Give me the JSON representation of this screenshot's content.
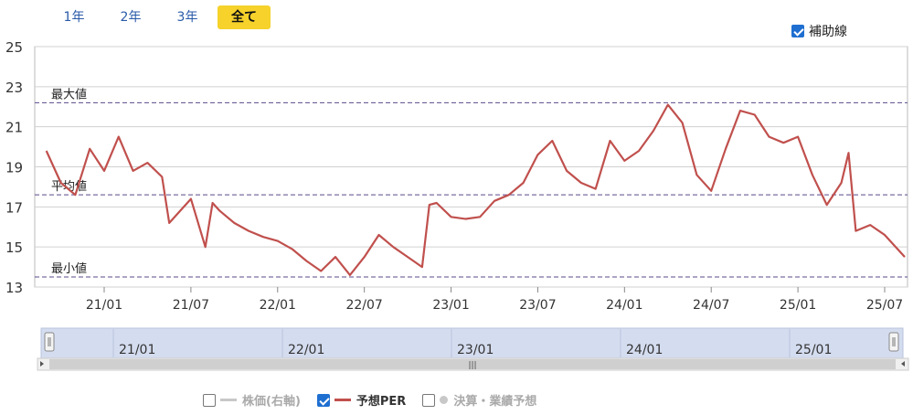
{
  "range_tabs": [
    {
      "label": "1年",
      "active": false
    },
    {
      "label": "2年",
      "active": false
    },
    {
      "label": "3年",
      "active": false
    },
    {
      "label": "全て",
      "active": true
    }
  ],
  "aux_lines": {
    "label": "補助線",
    "checked": true
  },
  "legend": [
    {
      "label": "株価(右軸)",
      "checked": false,
      "color": "#c8c8c8",
      "marker": "line"
    },
    {
      "label": "予想PER",
      "checked": true,
      "color": "#c0504d",
      "marker": "line"
    },
    {
      "label": "決算・業績予想",
      "checked": false,
      "color": "#c8c8c8",
      "marker": "dot"
    }
  ],
  "navigator": {
    "labels": [
      "21/01",
      "22/01",
      "23/01",
      "24/01",
      "25/01"
    ],
    "handle_grip": "|||"
  },
  "chart_data": {
    "type": "line",
    "y_ticks": [
      25,
      23,
      21,
      19,
      17,
      15,
      13
    ],
    "ylim": [
      13,
      25
    ],
    "x_ticks": [
      "21/01",
      "21/07",
      "22/01",
      "22/07",
      "23/01",
      "23/07",
      "24/01",
      "24/07",
      "25/01",
      "25/07"
    ],
    "reference_lines": [
      {
        "label": "最大値",
        "value": 22.2
      },
      {
        "label": "平均値",
        "value": 17.6
      },
      {
        "label": "最小値",
        "value": 13.5
      }
    ],
    "series": [
      {
        "name": "予想PER",
        "color": "#c0504d",
        "x": [
          "20/09",
          "20/10",
          "20/11",
          "20/12",
          "21/01",
          "21/02",
          "21/03",
          "21/04",
          "21/05",
          "21/05",
          "21/06",
          "21/07",
          "21/08",
          "21/08",
          "21/09",
          "21/10",
          "21/11",
          "21/12",
          "22/01",
          "22/02",
          "22/03",
          "22/04",
          "22/05",
          "22/06",
          "22/07",
          "22/08",
          "22/09",
          "22/10",
          "22/11",
          "22/11",
          "22/12",
          "23/01",
          "23/02",
          "23/03",
          "23/04",
          "23/05",
          "23/06",
          "23/07",
          "23/08",
          "23/09",
          "23/10",
          "23/11",
          "23/12",
          "24/01",
          "24/02",
          "24/03",
          "24/04",
          "24/05",
          "24/06",
          "24/07",
          "24/08",
          "24/09",
          "24/10",
          "24/11",
          "24/12",
          "25/01",
          "25/02",
          "25/03",
          "25/04",
          "25/04",
          "25/05",
          "25/06",
          "25/07",
          "25/08"
        ],
        "values": [
          19.8,
          18.2,
          17.6,
          19.9,
          18.8,
          20.5,
          18.8,
          19.2,
          18.5,
          16.2,
          16.6,
          17.4,
          15.0,
          17.2,
          16.8,
          16.2,
          15.8,
          15.5,
          15.3,
          14.9,
          14.3,
          13.8,
          14.5,
          13.6,
          14.5,
          15.6,
          15.0,
          14.5,
          14.0,
          17.1,
          17.2,
          16.5,
          16.4,
          16.5,
          17.3,
          17.6,
          18.2,
          19.6,
          20.3,
          18.8,
          18.2,
          17.9,
          20.3,
          19.3,
          19.8,
          20.8,
          22.1,
          21.2,
          18.6,
          17.8,
          19.9,
          21.8,
          21.6,
          20.5,
          20.2,
          20.5,
          18.6,
          17.1,
          18.2,
          19.7,
          15.8,
          16.1,
          15.6,
          14.5
        ]
      }
    ]
  }
}
